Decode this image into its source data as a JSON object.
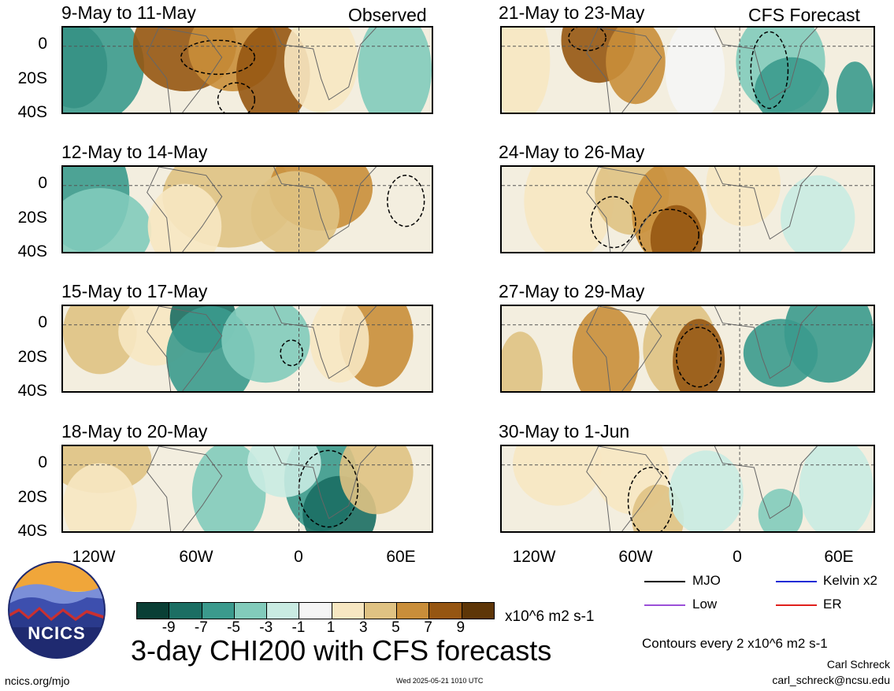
{
  "header": {
    "observed_label": "Observed",
    "forecast_label": "CFS Forecast"
  },
  "panels": [
    {
      "title": "9-May to 11-May"
    },
    {
      "title": "12-May to 14-May"
    },
    {
      "title": "15-May to 17-May"
    },
    {
      "title": "18-May to 20-May"
    },
    {
      "title": "21-May to 23-May"
    },
    {
      "title": "24-May to 26-May"
    },
    {
      "title": "27-May to 29-May"
    },
    {
      "title": "30-May to 1-Jun"
    }
  ],
  "axes": {
    "lat_ticks": [
      "0",
      "20S",
      "40S"
    ],
    "lon_ticks": [
      "120W",
      "60W",
      "0",
      "60E"
    ]
  },
  "colorbar": {
    "colors": [
      "#0a3f35",
      "#1b6e63",
      "#3b9a8d",
      "#82cbbb",
      "#c9ebe2",
      "#f5f5f5",
      "#f7e7c2",
      "#dfc283",
      "#c98e3a",
      "#965612",
      "#5e3607"
    ],
    "tick_labels": [
      "-9",
      "-7",
      "-5",
      "-3",
      "-1",
      "1",
      "3",
      "5",
      "7",
      "9"
    ],
    "units": "x10^6 m2 s-1"
  },
  "legend": {
    "items": [
      {
        "label": "MJO",
        "color": "#000000"
      },
      {
        "label": "Kelvin x2",
        "color": "#1a2bd6"
      },
      {
        "label": "Low",
        "color": "#9b4fd8"
      },
      {
        "label": "ER",
        "color": "#e0201c"
      }
    ],
    "contour_note": "Contours every 2 x10^6 m2 s-1"
  },
  "footer": {
    "main_title": "3-day CHI200 with CFS forecasts",
    "logo_text": "NCICS",
    "url": "ncics.org/mjo",
    "timestamp": "Wed 2025-05-21 1010 UTC",
    "author": "Carl Schreck",
    "email": "carl_schreck@ncsu.edu"
  }
}
